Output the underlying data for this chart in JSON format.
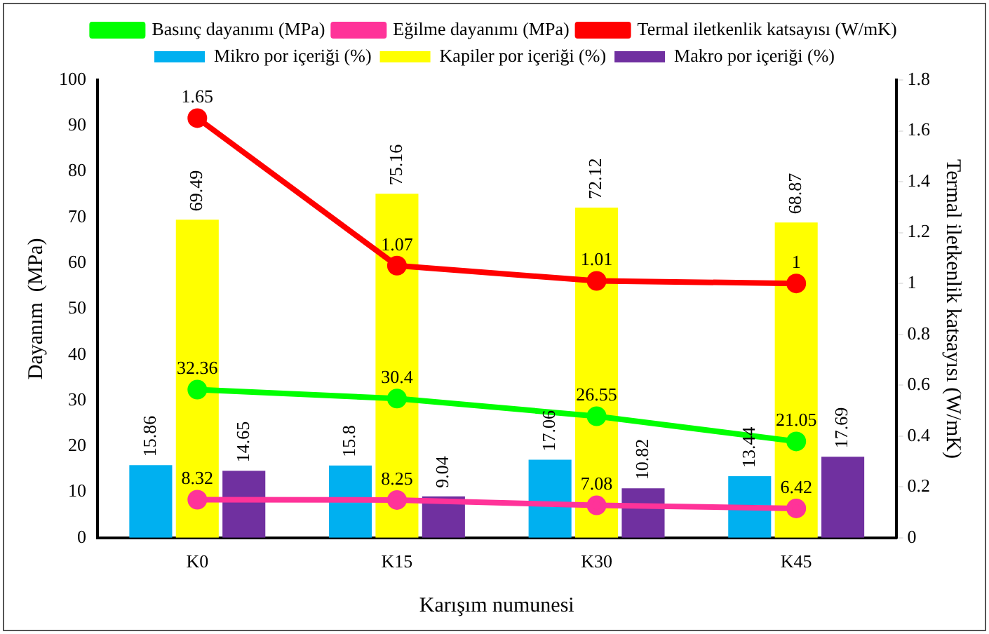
{
  "chart_data": {
    "type": "bar",
    "xlabel": "Karışım numunesi",
    "ylabel": "Dayanım  (MPa)",
    "y2label": "Termal iletkenlik katsayısı (W/mK)",
    "categories": [
      "K0",
      "K15",
      "K30",
      "K45"
    ],
    "series": [
      {
        "name": "Mikro por içeriği (%)",
        "color": "#00b0f0",
        "values": [
          15.86,
          15.8,
          17.06,
          13.44
        ]
      },
      {
        "name": "Kapiler por içeriği (%)",
        "color": "#ffff00",
        "values": [
          69.49,
          75.16,
          72.12,
          68.87
        ]
      },
      {
        "name": "Makro por içeriği (%)",
        "color": "#7030a0",
        "values": [
          14.65,
          9.04,
          10.82,
          17.69
        ]
      },
      {
        "name": "Basınç dayanımı (MPa)",
        "type": "line",
        "color": "#00ff00",
        "values": [
          32.36,
          30.4,
          26.55,
          21.05
        ]
      },
      {
        "name": "Eğilme dayanımı (MPa)",
        "type": "line",
        "color": "#ff3399",
        "values": [
          8.32,
          8.25,
          7.08,
          6.42
        ]
      },
      {
        "name": "Termal iletkenlik katsayısı (W/mK)",
        "type": "line",
        "axis": "y2",
        "color": "#ff0000",
        "values": [
          1.65,
          1.07,
          1.01,
          1
        ]
      }
    ],
    "ylim": [
      0,
      100
    ],
    "yticks": [
      0,
      10,
      20,
      30,
      40,
      50,
      60,
      70,
      80,
      90,
      100
    ],
    "y2lim": [
      0,
      1.8
    ],
    "y2ticks": [
      0,
      0.2,
      0.4,
      0.6,
      0.8,
      1,
      1.2,
      1.4,
      1.6,
      1.8
    ],
    "grid": false,
    "legend": "top",
    "marker": "circle",
    "line_style": "solid",
    "data_labels": true
  }
}
